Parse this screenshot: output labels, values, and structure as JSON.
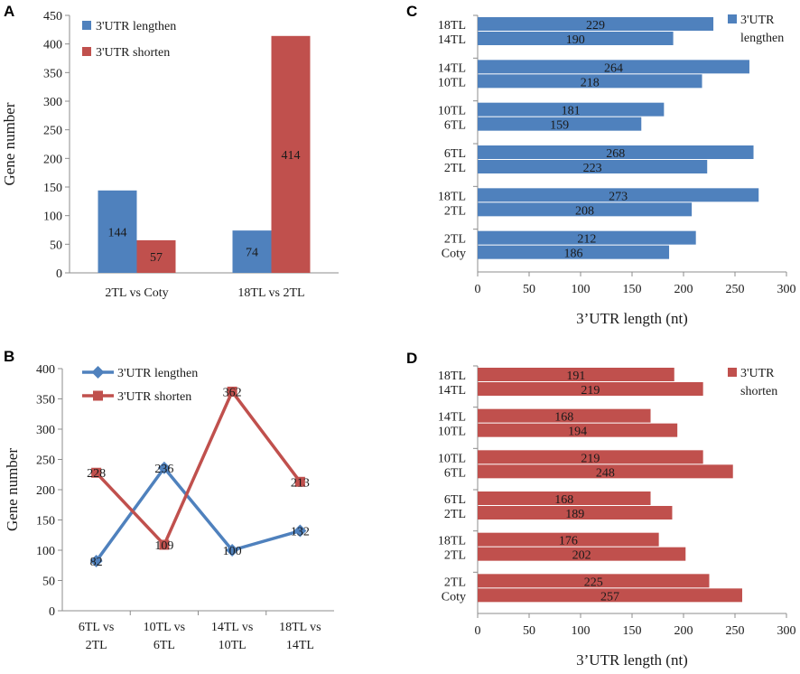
{
  "panels": {
    "a": "A",
    "b": "B",
    "c": "C",
    "d": "D"
  },
  "colors": {
    "blue": "#4F81BD",
    "red": "#C0504D"
  },
  "chart_data": [
    {
      "panel": "A",
      "type": "bar",
      "categories": [
        "2TL vs Coty",
        "18TL vs 2TL"
      ],
      "series": [
        {
          "name": "3'UTR lengthen",
          "values": [
            144,
            74
          ]
        },
        {
          "name": "3'UTR shorten",
          "values": [
            57,
            414
          ]
        }
      ],
      "ylabel": "Gene number",
      "ylim": [
        0,
        450
      ],
      "yticks": [
        0,
        50,
        100,
        150,
        200,
        250,
        300,
        350,
        400,
        450
      ],
      "legend_position": "top-left"
    },
    {
      "panel": "B",
      "type": "line",
      "categories": [
        [
          "6TL vs",
          "2TL"
        ],
        [
          "10TL vs",
          "6TL"
        ],
        [
          "14TL vs",
          "10TL"
        ],
        [
          "18TL vs",
          "14TL"
        ]
      ],
      "series": [
        {
          "name": "3'UTR lengthen",
          "marker": "diamond",
          "values": [
            82,
            236,
            100,
            132
          ]
        },
        {
          "name": "3'UTR shorten",
          "marker": "square",
          "values": [
            228,
            109,
            362,
            213
          ]
        }
      ],
      "ylabel": "Gene number",
      "ylim": [
        0,
        400
      ],
      "yticks": [
        0,
        50,
        100,
        150,
        200,
        250,
        300,
        350,
        400
      ],
      "legend_position": "top-left"
    },
    {
      "panel": "C",
      "type": "bar",
      "orientation": "horizontal",
      "series_name": [
        "3'UTR",
        "lengthen"
      ],
      "groups": [
        {
          "labels": [
            "18TL",
            "14TL"
          ],
          "values": [
            229,
            190
          ]
        },
        {
          "labels": [
            "14TL",
            "10TL"
          ],
          "values": [
            264,
            218
          ]
        },
        {
          "labels": [
            "10TL",
            "6TL"
          ],
          "values": [
            181,
            159
          ]
        },
        {
          "labels": [
            "6TL",
            "2TL"
          ],
          "values": [
            268,
            223
          ]
        },
        {
          "labels": [
            "18TL",
            "2TL"
          ],
          "values": [
            273,
            208
          ]
        },
        {
          "labels": [
            "2TL",
            "Coty"
          ],
          "values": [
            212,
            186
          ]
        }
      ],
      "xlabel": "3’UTR length (nt)",
      "xlim": [
        0,
        300
      ],
      "xticks": [
        0,
        50,
        100,
        150,
        200,
        250,
        300
      ],
      "legend_position": "top-right"
    },
    {
      "panel": "D",
      "type": "bar",
      "orientation": "horizontal",
      "series_name": [
        "3'UTR",
        "shorten"
      ],
      "groups": [
        {
          "labels": [
            "18TL",
            "14TL"
          ],
          "values": [
            191,
            219
          ]
        },
        {
          "labels": [
            "14TL",
            "10TL"
          ],
          "values": [
            168,
            194
          ]
        },
        {
          "labels": [
            "10TL",
            "6TL"
          ],
          "values": [
            219,
            248
          ]
        },
        {
          "labels": [
            "6TL",
            "2TL"
          ],
          "values": [
            168,
            189
          ]
        },
        {
          "labels": [
            "18TL",
            "2TL"
          ],
          "values": [
            176,
            202
          ]
        },
        {
          "labels": [
            "2TL",
            "Coty"
          ],
          "values": [
            225,
            257
          ]
        }
      ],
      "xlabel": "3’UTR length (nt)",
      "xlim": [
        0,
        300
      ],
      "xticks": [
        0,
        50,
        100,
        150,
        200,
        250,
        300
      ],
      "legend_position": "top-right"
    }
  ]
}
